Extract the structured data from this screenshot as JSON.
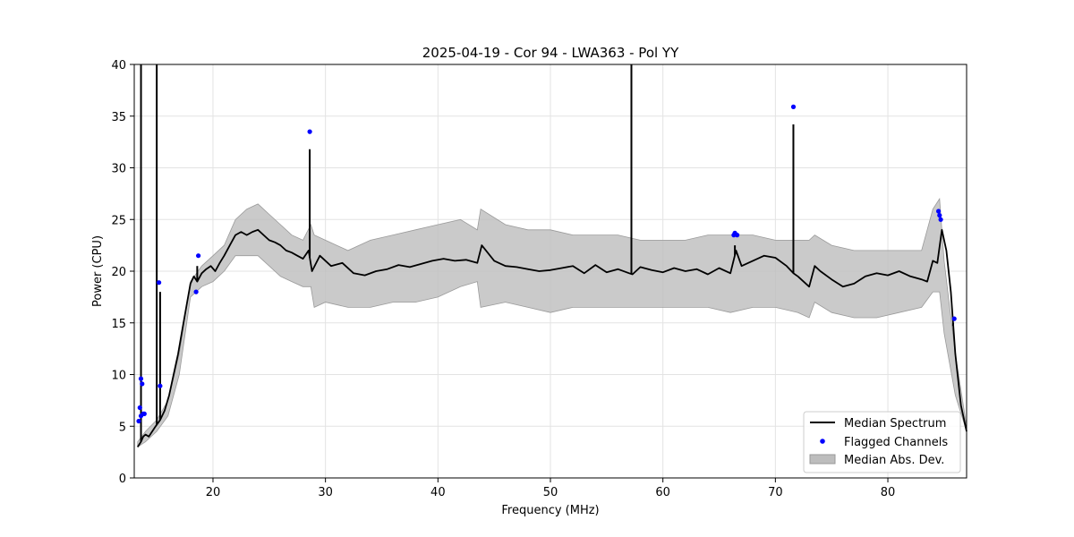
{
  "chart_data": {
    "type": "line",
    "title": "2025-04-19 - Cor 94 - LWA363 - Pol YY",
    "xlabel": "Frequency (MHz)",
    "ylabel": "Power (CPU)",
    "xlim": [
      13,
      87
    ],
    "ylim": [
      0,
      40
    ],
    "xticks": [
      "20",
      "30",
      "40",
      "50",
      "60",
      "70",
      "80"
    ],
    "yticks": [
      "0",
      "5",
      "10",
      "15",
      "20",
      "25",
      "30",
      "35",
      "40"
    ],
    "grid": true,
    "legend_position": "bottom-right",
    "legend": [
      {
        "label": "Median Spectrum",
        "kind": "line",
        "color": "#000000"
      },
      {
        "label": "Flagged Channels",
        "kind": "marker",
        "color": "#0000ff"
      },
      {
        "label": "Median Abs. Dev.",
        "kind": "band",
        "color": "#bdbdbd"
      }
    ],
    "series": [
      {
        "name": "Median Spectrum",
        "color": "#000000",
        "x": [
          13.3,
          13.6,
          13.8,
          14.0,
          14.3,
          14.6,
          14.9,
          15.3,
          15.7,
          16.1,
          16.5,
          16.9,
          17.3,
          17.7,
          18.0,
          18.3,
          18.6,
          19.0,
          19.4,
          19.8,
          20.2,
          20.6,
          21.0,
          21.5,
          22.0,
          22.5,
          23.0,
          23.5,
          24.0,
          24.5,
          25.0,
          25.5,
          26.0,
          26.5,
          27.0,
          27.5,
          28.0,
          28.5,
          28.8,
          29.5,
          30.5,
          31.5,
          32.5,
          33.5,
          34.5,
          35.5,
          36.5,
          37.5,
          38.5,
          39.5,
          40.5,
          41.5,
          42.5,
          43.5,
          43.9,
          45.0,
          46.0,
          47.0,
          48.0,
          49.0,
          50.0,
          51.0,
          52.0,
          53.0,
          54.0,
          55.0,
          56.0,
          57.0,
          57.3,
          58.0,
          59.0,
          60.0,
          61.0,
          62.0,
          63.0,
          64.0,
          65.0,
          66.0,
          66.5,
          67.0,
          68.0,
          69.0,
          70.0,
          71.0,
          71.6,
          72.0,
          73.0,
          73.5,
          74.0,
          75.0,
          76.0,
          77.0,
          78.0,
          79.0,
          80.0,
          81.0,
          82.0,
          83.0,
          83.5,
          84.0,
          84.4,
          84.8,
          85.2,
          85.6,
          86.0,
          86.5,
          87.0
        ],
        "y": [
          3.0,
          3.5,
          4.0,
          4.2,
          4.0,
          4.5,
          5.0,
          5.6,
          6.5,
          8.0,
          10.0,
          12.0,
          14.5,
          17.0,
          18.8,
          19.5,
          19.0,
          19.8,
          20.2,
          20.5,
          20.0,
          20.8,
          21.5,
          22.5,
          23.5,
          23.8,
          23.5,
          23.8,
          24.0,
          23.5,
          23.0,
          22.8,
          22.5,
          22.0,
          21.8,
          21.5,
          21.2,
          22.0,
          20.0,
          21.5,
          20.5,
          20.8,
          19.8,
          19.6,
          20.0,
          20.2,
          20.6,
          20.4,
          20.7,
          21.0,
          21.2,
          21.0,
          21.1,
          20.8,
          22.5,
          21.0,
          20.5,
          20.4,
          20.2,
          20.0,
          20.1,
          20.3,
          20.5,
          19.8,
          20.6,
          19.9,
          20.2,
          19.8,
          19.7,
          20.4,
          20.1,
          19.9,
          20.3,
          20.0,
          20.2,
          19.7,
          20.3,
          19.8,
          22.0,
          20.5,
          21.0,
          21.5,
          21.3,
          20.5,
          19.8,
          19.5,
          18.5,
          20.5,
          20.0,
          19.2,
          18.5,
          18.8,
          19.5,
          19.8,
          19.6,
          20.0,
          19.5,
          19.2,
          19.0,
          21.0,
          20.8,
          24.0,
          22.0,
          18.0,
          12.0,
          7.0,
          4.5
        ]
      },
      {
        "name": "Median Abs. Dev.",
        "color": "#bdbdbd",
        "x": [
          13.3,
          14.0,
          15.0,
          16.0,
          17.0,
          18.0,
          19.0,
          20.0,
          21.0,
          22.0,
          23.0,
          24.0,
          25.0,
          26.0,
          27.0,
          28.0,
          28.7,
          29.0,
          30.0,
          32.0,
          34.0,
          36.0,
          38.0,
          40.0,
          42.0,
          43.5,
          43.8,
          46.0,
          48.0,
          50.0,
          52.0,
          54.0,
          56.0,
          58.0,
          60.0,
          62.0,
          64.0,
          66.0,
          68.0,
          70.0,
          72.0,
          73.0,
          73.5,
          75.0,
          77.0,
          79.0,
          81.0,
          83.0,
          84.0,
          84.6,
          85.0,
          86.0,
          87.0
        ],
        "upper": [
          3.5,
          4.5,
          5.6,
          7.5,
          12.0,
          19.0,
          20.5,
          21.5,
          22.5,
          25.0,
          26.0,
          26.5,
          25.5,
          24.5,
          23.5,
          23.0,
          24.5,
          23.5,
          23.0,
          22.0,
          23.0,
          23.5,
          24.0,
          24.5,
          25.0,
          24.0,
          26.0,
          24.5,
          24.0,
          24.0,
          23.5,
          23.5,
          23.5,
          23.0,
          23.0,
          23.0,
          23.5,
          23.5,
          23.5,
          23.0,
          23.0,
          23.0,
          23.5,
          22.5,
          22.0,
          22.0,
          22.0,
          22.0,
          26.0,
          27.0,
          21.0,
          12.0,
          5.0
        ],
        "lower": [
          3.0,
          3.5,
          4.5,
          6.0,
          10.0,
          17.5,
          18.5,
          19.0,
          20.0,
          21.5,
          21.5,
          21.5,
          20.5,
          19.5,
          19.0,
          18.5,
          18.5,
          16.5,
          17.0,
          16.5,
          16.5,
          17.0,
          17.0,
          17.5,
          18.5,
          19.0,
          16.5,
          17.0,
          16.5,
          16.0,
          16.5,
          16.5,
          16.5,
          16.5,
          16.5,
          16.5,
          16.5,
          16.0,
          16.5,
          16.5,
          16.0,
          15.5,
          17.0,
          16.0,
          15.5,
          15.5,
          16.0,
          16.5,
          18.0,
          18.0,
          14.0,
          8.0,
          4.5
        ]
      }
    ],
    "spikes": [
      {
        "x": 13.6,
        "y": 40
      },
      {
        "x": 15.0,
        "y": 40
      },
      {
        "x": 15.3,
        "y": 18.0
      },
      {
        "x": 18.6,
        "y": 20.5
      },
      {
        "x": 28.6,
        "y": 31.8
      },
      {
        "x": 57.2,
        "y": 40
      },
      {
        "x": 66.4,
        "y": 22.5
      },
      {
        "x": 71.6,
        "y": 34.2
      },
      {
        "x": 85.8,
        "y": 14.7
      }
    ],
    "flagged_channels": {
      "name": "Flagged Channels",
      "color": "#0000ff",
      "x": [
        13.4,
        13.5,
        13.6,
        13.7,
        13.8,
        13.6,
        13.9,
        15.2,
        15.3,
        18.5,
        18.7,
        28.6,
        66.3,
        66.4,
        66.6,
        71.6,
        84.5,
        84.6,
        84.7,
        85.9
      ],
      "y": [
        5.5,
        6.8,
        9.6,
        9.1,
        6.2,
        6.0,
        6.2,
        18.9,
        8.9,
        18.0,
        21.5,
        33.5,
        23.5,
        23.7,
        23.5,
        35.9,
        25.8,
        25.4,
        25.0,
        15.4
      ]
    }
  }
}
